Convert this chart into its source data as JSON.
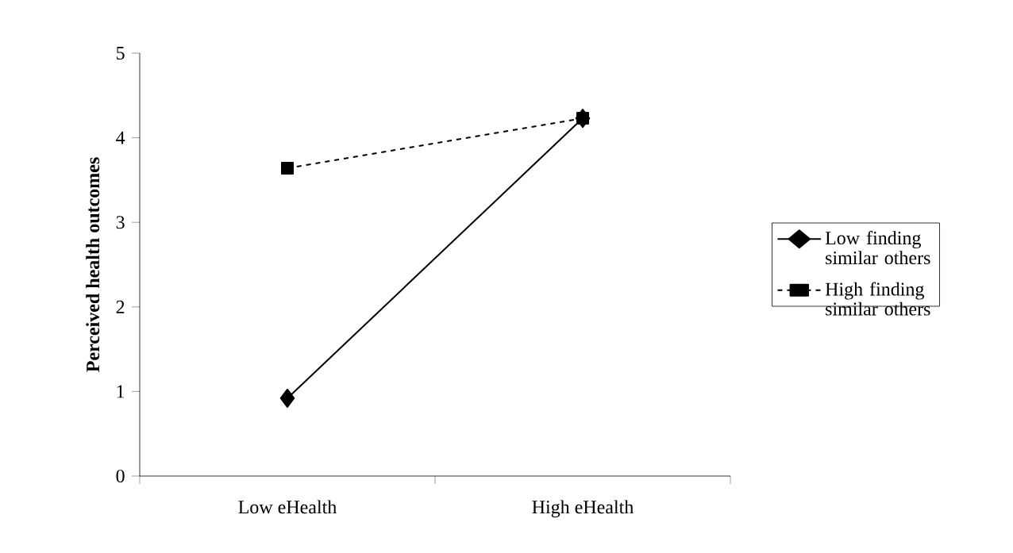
{
  "chart_data": {
    "type": "line",
    "ylabel": "Perceived health outcomes",
    "categories": [
      "Low eHealth",
      "High eHealth"
    ],
    "series": [
      {
        "name": "Low finding similar others",
        "color": "#000000",
        "values": [
          0.92,
          4.23
        ],
        "marker": "diamond",
        "line_style": "solid"
      },
      {
        "name": "High finding similar others",
        "color": "#000000",
        "values": [
          3.64,
          4.23
        ],
        "marker": "square",
        "line_style": "dashed"
      }
    ],
    "ylim": [
      0,
      5
    ],
    "yticks": [
      0,
      1,
      2,
      3,
      4,
      5
    ],
    "grid": false,
    "legend": "right"
  }
}
